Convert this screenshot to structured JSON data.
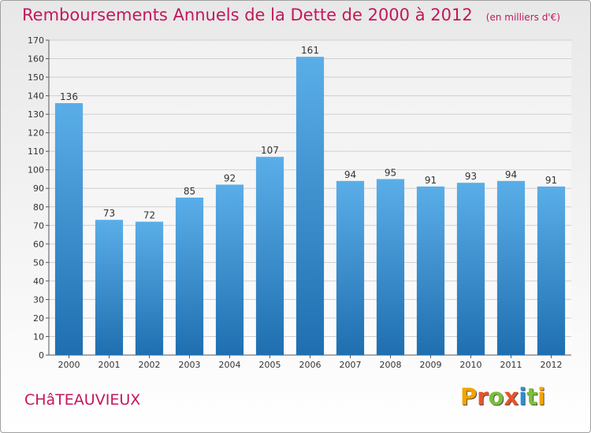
{
  "header": {
    "title": "Remboursements Annuels de la Dette de 2000 à 2012",
    "unit": "(en milliers d'€)"
  },
  "footer": {
    "commune": "CHâTEAUVIEUX",
    "logo": "Proxiti"
  },
  "colors": {
    "bar_top": "#5aaee8",
    "bar_bottom": "#1f6fb0",
    "title": "#c2185b",
    "grid": "#cfcfcf"
  },
  "chart_data": {
    "type": "bar",
    "title": "Remboursements Annuels de la Dette de 2000 à 2012",
    "xlabel": "",
    "ylabel": "",
    "categories": [
      "2000",
      "2001",
      "2002",
      "2003",
      "2004",
      "2005",
      "2006",
      "2007",
      "2008",
      "2009",
      "2010",
      "2011",
      "2012"
    ],
    "values": [
      136,
      73,
      72,
      85,
      92,
      107,
      161,
      94,
      95,
      91,
      93,
      94,
      91
    ],
    "ylim": [
      0,
      170
    ],
    "yticks": [
      0,
      10,
      20,
      30,
      40,
      50,
      60,
      70,
      80,
      90,
      100,
      110,
      120,
      130,
      140,
      150,
      160,
      170
    ],
    "grid": true,
    "legend": "none"
  }
}
